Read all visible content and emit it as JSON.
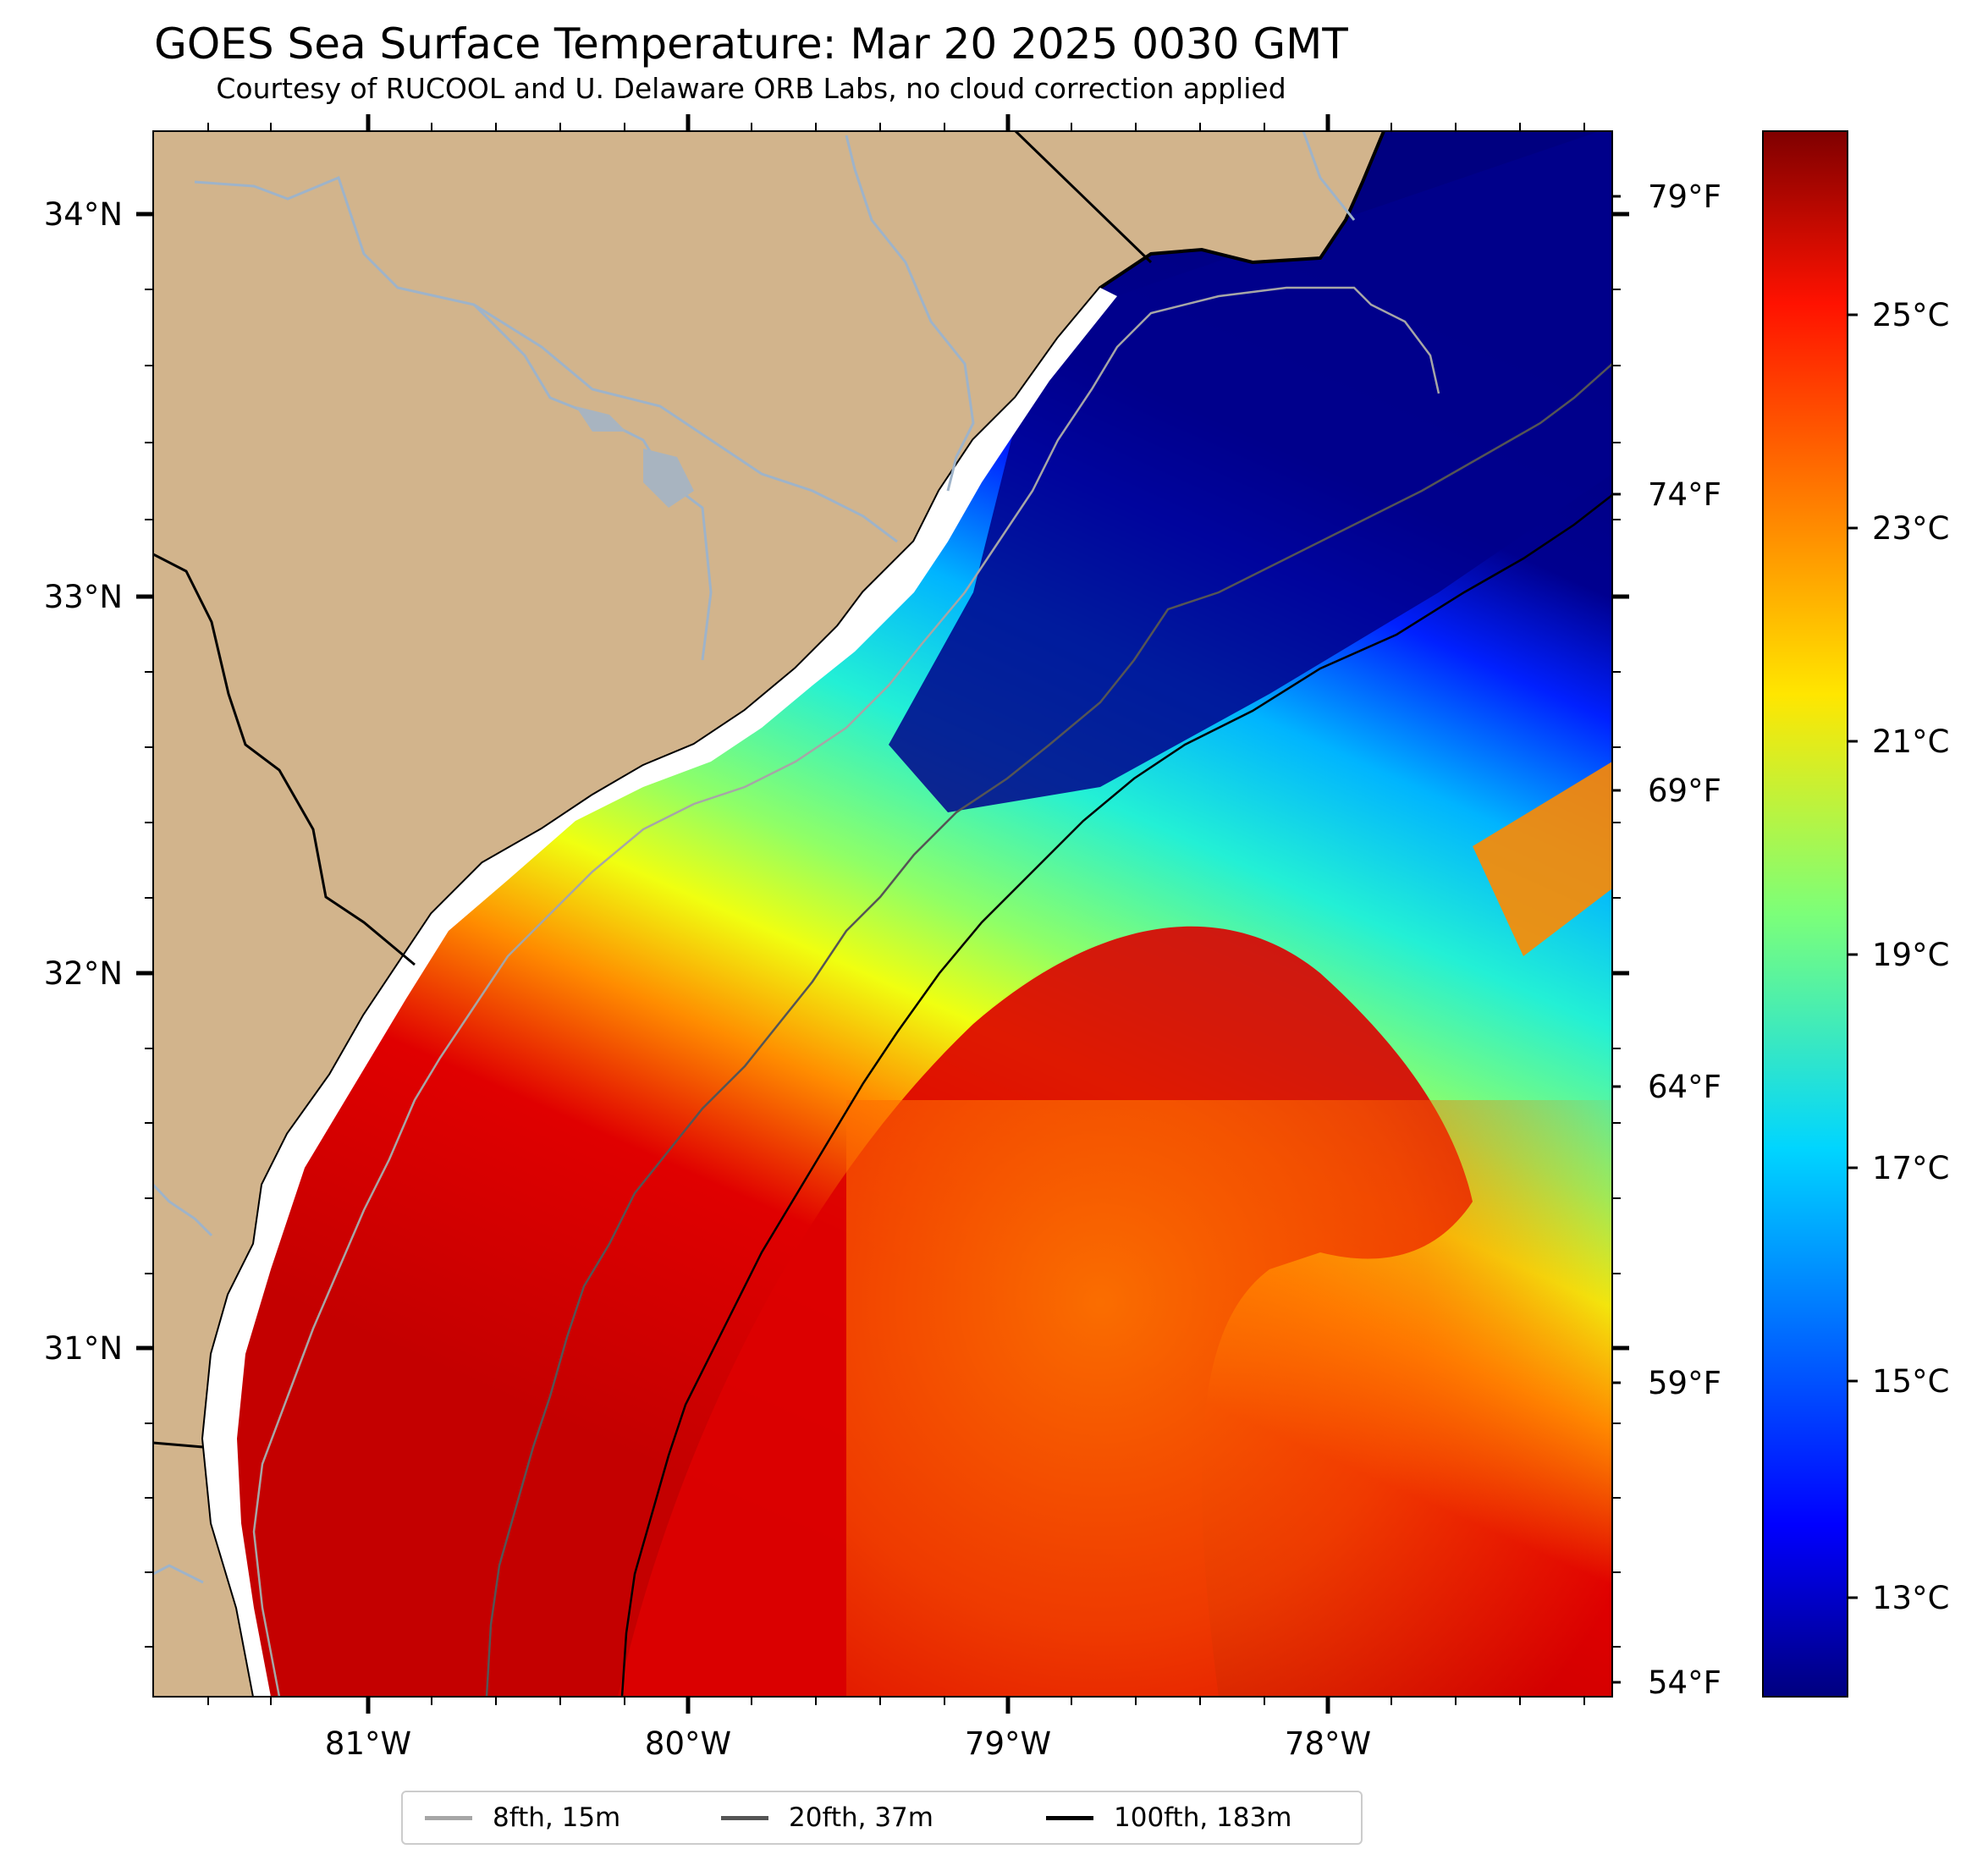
{
  "title": "GOES Sea Surface Temperature: Mar 20 2025 0030 GMT",
  "subtitle": "Courtesy of RUCOOL and U. Delaware ORB Labs, no cloud correction applied",
  "map": {
    "lat_ticks": [
      "34°N",
      "33°N",
      "32°N",
      "31°N"
    ],
    "lon_ticks": [
      "81°W",
      "80°W",
      "79°W",
      "78°W"
    ],
    "fahrenheit_ticks": [
      "79°F",
      "74°F",
      "69°F",
      "64°F",
      "59°F",
      "54°F"
    ],
    "land_color": "#d2b48c",
    "river_color": "#9eb3c9"
  },
  "colorbar": {
    "ticks": [
      "25°C",
      "23°C",
      "21°C",
      "19°C",
      "17°C",
      "15°C",
      "13°C"
    ],
    "colormap": "jet"
  },
  "legend": {
    "items": [
      {
        "label": "8fth, 15m",
        "color": "#a6a6a6"
      },
      {
        "label": "20fth, 37m",
        "color": "#555555"
      },
      {
        "label": "100fth, 183m",
        "color": "#000000"
      }
    ]
  }
}
